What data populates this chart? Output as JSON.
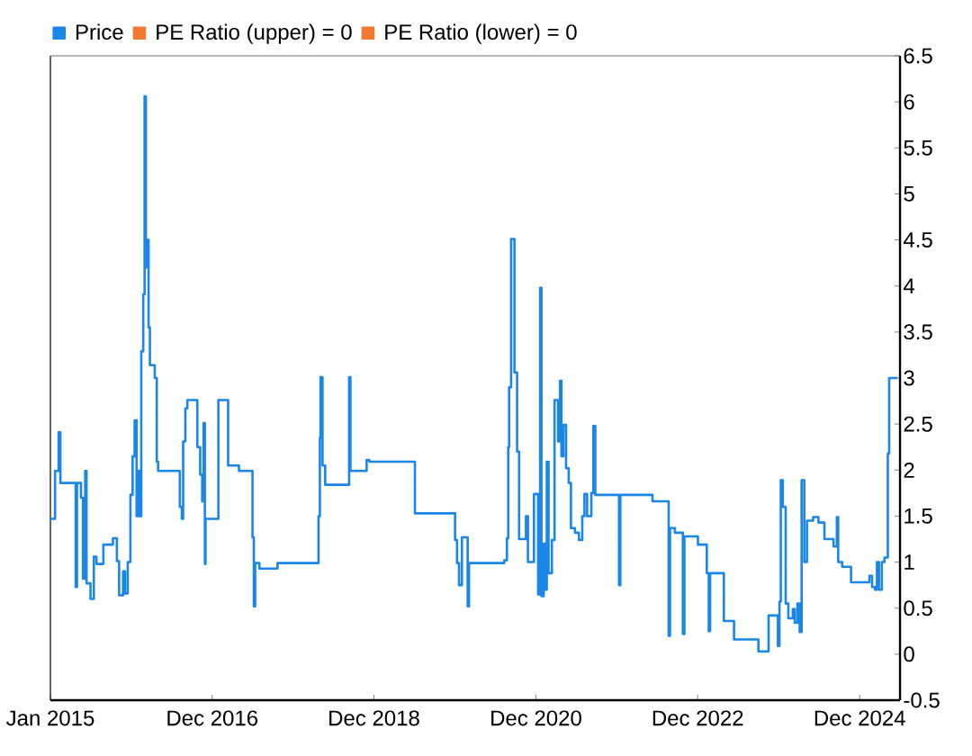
{
  "chart_data": {
    "type": "step",
    "legend": "top left",
    "marker": "none",
    "line_style": "solid",
    "grid": false,
    "xlim": [
      "2015-01-01",
      "2025-07-01"
    ],
    "xticks": [
      {
        "value": "2015-01-01",
        "label": "Jan 2015"
      },
      {
        "value": "2016-12-31",
        "label": "Dec 2016"
      },
      {
        "value": "2018-12-31",
        "label": "Dec 2018"
      },
      {
        "value": "2020-12-31",
        "label": "Dec 2020"
      },
      {
        "value": "2022-12-31",
        "label": "Dec 2022"
      },
      {
        "value": "2024-12-31",
        "label": "Dec 2024"
      }
    ],
    "ylim": [
      -0.5,
      6.5
    ],
    "yticks": [
      -0.5,
      0,
      0.5,
      1,
      1.5,
      2,
      2.5,
      3,
      3.5,
      4,
      4.5,
      5,
      5.5,
      6,
      6.5
    ],
    "series": [
      {
        "name": "Price",
        "color": "#1a86e8",
        "x": [
          "2015-01-01",
          "2015-01-22",
          "2015-02-07",
          "2015-02-15",
          "2015-04-25",
          "2015-05-01",
          "2015-05-19",
          "2015-05-28",
          "2015-06-07",
          "2015-06-13",
          "2015-07-01",
          "2015-07-16",
          "2015-07-28",
          "2015-08-28",
          "2015-10-10",
          "2015-10-28",
          "2015-11-07",
          "2015-11-25",
          "2015-12-04",
          "2015-12-16",
          "2015-12-28",
          "2016-01-07",
          "2016-01-16",
          "2016-01-25",
          "2016-02-01",
          "2016-02-07",
          "2016-02-15",
          "2016-02-24",
          "2016-03-01",
          "2016-03-07",
          "2016-03-13",
          "2016-03-19",
          "2016-03-25",
          "2016-04-16",
          "2016-04-25",
          "2016-05-01",
          "2016-08-07",
          "2016-08-16",
          "2016-08-22",
          "2016-09-01",
          "2016-09-10",
          "2016-10-25",
          "2016-11-07",
          "2016-11-16",
          "2016-11-22",
          "2016-11-28",
          "2016-12-01",
          "2017-01-28",
          "2017-03-13",
          "2017-05-01",
          "2017-07-01",
          "2017-07-07",
          "2017-07-13",
          "2017-08-01",
          "2017-10-22",
          "2018-04-25",
          "2018-05-01",
          "2018-05-04",
          "2018-05-13",
          "2018-05-25",
          "2018-09-10",
          "2018-09-16",
          "2018-11-28",
          "2018-12-10",
          "2019-07-04",
          "2020-01-01",
          "2020-01-10",
          "2020-01-19",
          "2020-02-01",
          "2020-02-27",
          "2020-03-04",
          "2020-08-10",
          "2020-08-22",
          "2020-08-28",
          "2020-09-01",
          "2020-09-10",
          "2020-09-25",
          "2020-10-07",
          "2020-10-16",
          "2020-11-16",
          "2020-11-25",
          "2020-12-22",
          "2021-01-10",
          "2021-01-19",
          "2021-01-25",
          "2021-02-04",
          "2021-02-12",
          "2021-02-18",
          "2021-02-26",
          "2021-03-13",
          "2021-03-25",
          "2021-04-10",
          "2021-04-19",
          "2021-04-25",
          "2021-05-04",
          "2021-05-16",
          "2021-05-28",
          "2021-06-07",
          "2021-06-25",
          "2021-07-13",
          "2021-07-28",
          "2021-08-07",
          "2021-08-19",
          "2021-09-07",
          "2021-09-16",
          "2021-09-25",
          "2022-01-10",
          "2022-01-16",
          "2022-06-10",
          "2022-08-22",
          "2022-08-28",
          "2022-09-19",
          "2022-10-25",
          "2022-11-01",
          "2023-01-01",
          "2023-02-10",
          "2023-02-19",
          "2023-02-25",
          "2023-04-28",
          "2023-06-13",
          "2023-10-01",
          "2023-11-16",
          "2023-12-28",
          "2024-01-04",
          "2024-01-10",
          "2024-01-19",
          "2024-02-01",
          "2024-02-13",
          "2024-03-04",
          "2024-03-13",
          "2024-03-25",
          "2024-04-04",
          "2024-04-13",
          "2024-04-25",
          "2024-05-07",
          "2024-06-04",
          "2024-06-28",
          "2024-07-25",
          "2024-09-04",
          "2024-09-19",
          "2024-09-25",
          "2024-10-13",
          "2024-11-22",
          "2025-02-13",
          "2025-02-25",
          "2025-03-10",
          "2025-03-19",
          "2025-03-28",
          "2025-04-10",
          "2025-04-22",
          "2025-05-07",
          "2025-05-13",
          "2025-06-19"
        ],
        "values": [
          1.47,
          1.99,
          2.41,
          1.86,
          0.73,
          1.86,
          1.7,
          0.82,
          1.99,
          0.77,
          0.6,
          1.06,
          0.98,
          1.19,
          1.26,
          1.01,
          0.64,
          0.9,
          0.66,
          1.0,
          1.73,
          2.15,
          2.54,
          1.5,
          1.99,
          1.5,
          3.29,
          3.91,
          6.06,
          4.2,
          4.5,
          3.55,
          3.14,
          3.0,
          2.09,
          1.99,
          1.6,
          1.47,
          2.31,
          2.67,
          2.76,
          2.25,
          1.95,
          1.66,
          2.51,
          0.98,
          1.47,
          2.76,
          2.05,
          1.99,
          1.27,
          0.52,
          0.99,
          0.93,
          0.99,
          1.5,
          2.35,
          3.01,
          2.05,
          1.84,
          3.01,
          1.99,
          2.11,
          2.09,
          1.53,
          1.24,
          0.99,
          0.75,
          1.27,
          0.52,
          0.99,
          1.02,
          1.26,
          2.25,
          2.9,
          4.51,
          3.06,
          2.2,
          1.25,
          1.5,
          1.0,
          1.74,
          0.65,
          3.98,
          0.63,
          1.2,
          0.7,
          2.09,
          0.88,
          1.24,
          2.76,
          2.31,
          2.97,
          2.15,
          2.49,
          2.02,
          1.86,
          1.37,
          1.32,
          1.24,
          1.5,
          1.74,
          1.5,
          1.75,
          2.48,
          1.73,
          0.75,
          1.73,
          1.66,
          0.2,
          1.37,
          1.32,
          0.22,
          1.28,
          1.19,
          0.88,
          0.25,
          0.88,
          0.36,
          0.16,
          0.03,
          0.42,
          0.09,
          0.57,
          1.89,
          1.6,
          0.55,
          0.39,
          0.49,
          0.34,
          0.55,
          0.24,
          1.89,
          1.0,
          1.45,
          1.49,
          1.43,
          1.25,
          1.17,
          1.49,
          1.0,
          0.95,
          0.78,
          0.85,
          0.73,
          0.7,
          1.0,
          0.7,
          1.0,
          1.05,
          2.18,
          3.0,
          3.0
        ]
      },
      {
        "name": "PE Ratio (upper) = 0",
        "color": "#f07a30"
      },
      {
        "name": "PE Ratio (lower) = 0",
        "color": "#f07a30"
      }
    ]
  }
}
